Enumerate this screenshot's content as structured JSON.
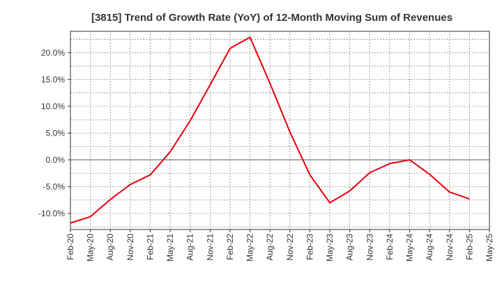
{
  "chart_data": {
    "type": "line",
    "title": "[3815]  Trend of Growth Rate (YoY) of 12-Month Moving Sum of Revenues",
    "xlabel": "",
    "ylabel": "",
    "x_ticks": [
      "Feb-20",
      "May-20",
      "Aug-20",
      "Nov-20",
      "Feb-21",
      "May-21",
      "Aug-21",
      "Nov-21",
      "Feb-22",
      "May-22",
      "Aug-22",
      "Nov-22",
      "Feb-23",
      "May-23",
      "Aug-23",
      "Nov-23",
      "Feb-24",
      "May-24",
      "Aug-24",
      "Nov-24",
      "Feb-25",
      "May-25"
    ],
    "y_ticks": [
      20,
      15,
      10,
      5,
      0,
      -5,
      -10
    ],
    "y_tick_labels": [
      "20.0%",
      "15.0%",
      "10.0%",
      "5.0%",
      "0.0%",
      "-5.0%",
      "-10.0%"
    ],
    "ylim": [
      -13,
      24
    ],
    "grid": true,
    "series": [
      {
        "color": "#e8000b",
        "x": [
          "Feb-20",
          "May-20",
          "Aug-20",
          "Nov-20",
          "Feb-21",
          "May-21",
          "Aug-21",
          "Nov-21",
          "Feb-22",
          "May-22",
          "Aug-22",
          "Nov-22",
          "Feb-23",
          "May-23",
          "Aug-23",
          "Nov-23",
          "Feb-24",
          "May-24",
          "Aug-24",
          "Nov-24",
          "Feb-25"
        ],
        "values": [
          -11.8,
          -10.6,
          -7.4,
          -4.6,
          -2.8,
          1.5,
          7.3,
          14.0,
          20.8,
          22.9,
          14.3,
          5.2,
          -2.8,
          -8.0,
          -5.8,
          -2.4,
          -0.7,
          0.0,
          -2.7,
          -6.0,
          -7.3
        ]
      }
    ]
  }
}
